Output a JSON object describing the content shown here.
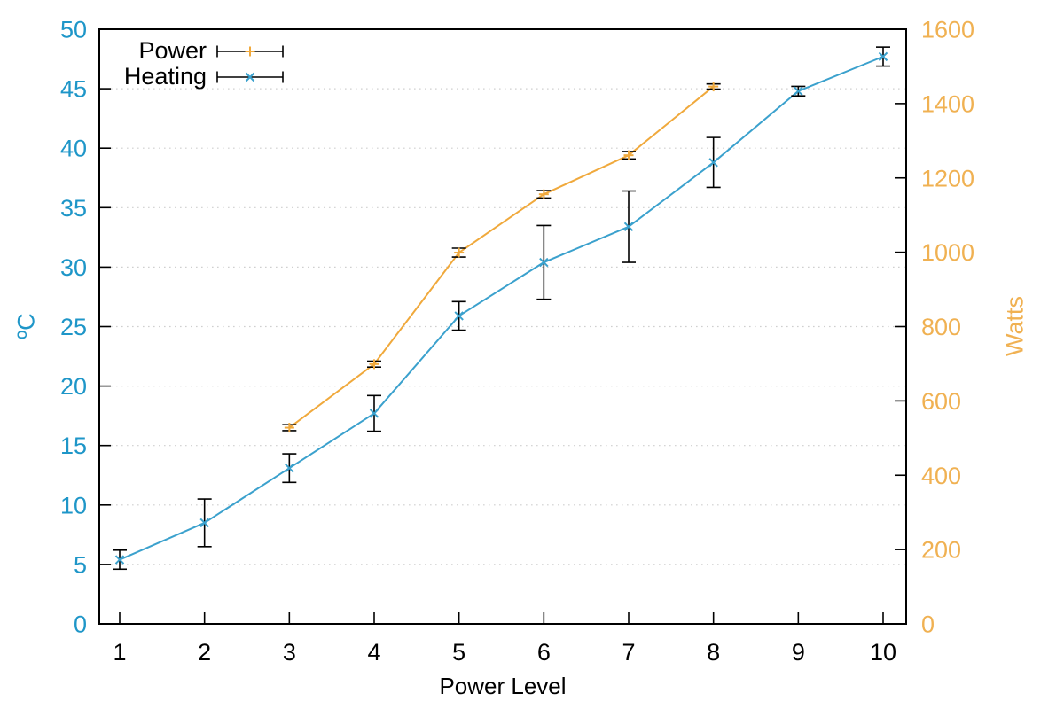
{
  "chart_data": {
    "type": "line",
    "title": "",
    "xlabel": "Power Level",
    "x_ticks": [
      1,
      2,
      3,
      4,
      5,
      6,
      7,
      8,
      9,
      10
    ],
    "left_axis": {
      "label": "ºC",
      "min": 0,
      "max": 50,
      "tick_step": 5,
      "ticks": [
        0,
        5,
        10,
        15,
        20,
        25,
        30,
        35,
        40,
        45,
        50
      ],
      "color": "#1e96c8"
    },
    "right_axis": {
      "label": "Watts",
      "min": 0,
      "max": 1600,
      "tick_step": 200,
      "ticks": [
        0,
        200,
        400,
        600,
        800,
        1000,
        1200,
        1400,
        1600
      ],
      "color": "#f0b152"
    },
    "grid": {
      "horizontal": "dotted",
      "color": "#cfcfcf",
      "vertical": "none"
    },
    "legend_position": "top-left-inside",
    "error_bars": {
      "color": "#000000",
      "cap_width": 16
    },
    "series": [
      {
        "name": "Power",
        "axis": "right",
        "unit": "Watts",
        "color": "#f0a93c",
        "marker": "plus",
        "x": [
          3,
          4,
          5,
          6,
          7,
          8
        ],
        "y": [
          528,
          699,
          999,
          1156,
          1261,
          1446
        ],
        "yerr": [
          8,
          8,
          12,
          10,
          10,
          7
        ]
      },
      {
        "name": "Heating",
        "axis": "left",
        "unit": "ºC",
        "color": "#3ba1cd",
        "marker": "cross",
        "x": [
          1,
          2,
          3,
          4,
          5,
          6,
          7,
          8,
          9,
          10
        ],
        "y": [
          5.4,
          8.5,
          13.1,
          17.7,
          25.9,
          30.4,
          33.4,
          38.8,
          44.8,
          47.7
        ],
        "yerr": [
          0.8,
          2.0,
          1.2,
          1.5,
          1.2,
          3.1,
          3.0,
          2.1,
          0.4,
          0.8
        ]
      }
    ]
  }
}
